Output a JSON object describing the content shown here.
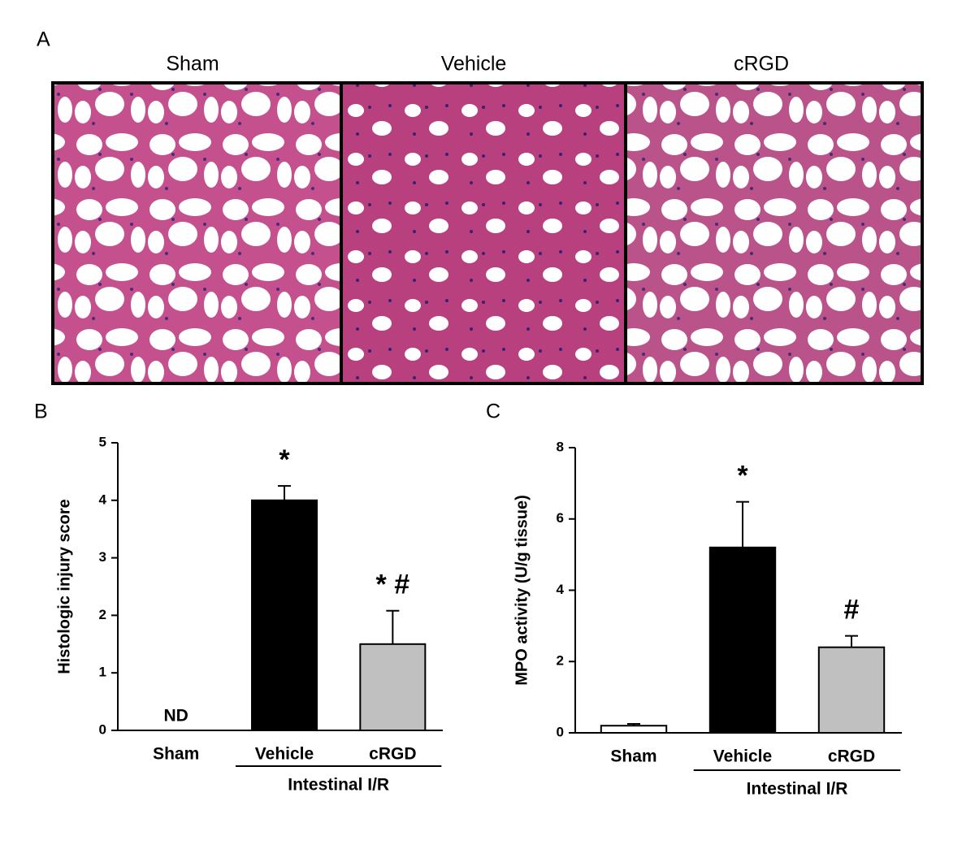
{
  "panel_a": {
    "label": "A",
    "images": [
      "Sham",
      "Vehicle",
      "cRGD"
    ]
  },
  "chart_data": [
    {
      "type": "bar",
      "label": "B",
      "ylabel": "Histologic injury score",
      "categories": [
        "Sham",
        "Vehicle",
        "cRGD"
      ],
      "values": [
        null,
        4,
        1.5
      ],
      "errors": [
        null,
        0.25,
        0.58
      ],
      "colors": [
        "#ffffff",
        "#000000",
        "#c0c0c0"
      ],
      "annotations": [
        "ND",
        "*",
        "* #"
      ],
      "group": {
        "label": "Intestinal I/R",
        "categories": [
          1,
          2
        ]
      },
      "ylim": [
        0,
        5
      ],
      "yticks": [
        0,
        1,
        2,
        3,
        4,
        5
      ]
    },
    {
      "type": "bar",
      "label": "C",
      "ylabel": "MPO activity (U/g tissue)",
      "categories": [
        "Sham",
        "Vehicle",
        "cRGD"
      ],
      "values": [
        0.2,
        5.2,
        2.4
      ],
      "errors": [
        0.05,
        1.28,
        0.32
      ],
      "colors": [
        "#ffffff",
        "#000000",
        "#c0c0c0"
      ],
      "annotations": [
        null,
        "*",
        "#"
      ],
      "group": {
        "label": "Intestinal I/R",
        "categories": [
          1,
          2
        ]
      },
      "ylim": [
        0,
        8
      ],
      "yticks": [
        0,
        2,
        4,
        6,
        8
      ]
    }
  ]
}
